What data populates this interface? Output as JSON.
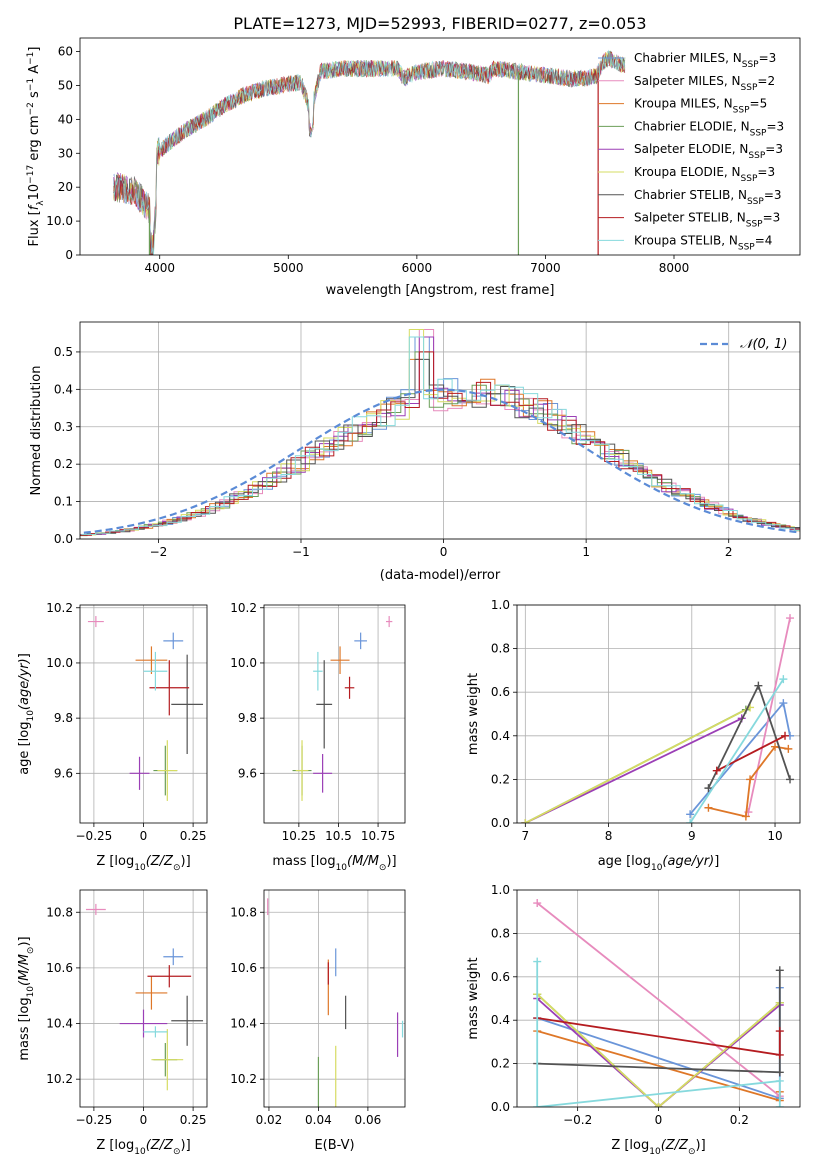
{
  "title": "PLATE=1273, MJD=52993, FIBERID=0277, z=0.053",
  "colors": [
    "#6a95d9",
    "#e78bbd",
    "#de7728",
    "#6b9e58",
    "#9b3fb6",
    "#d6dc63",
    "#535353",
    "#b51c20",
    "#86d9dd"
  ],
  "legend": [
    {
      "label": "Chabrier MILES, N",
      "sub": "SSP",
      "suffix": "=3"
    },
    {
      "label": "Salpeter MILES, N",
      "sub": "SSP",
      "suffix": "=2"
    },
    {
      "label": "Kroupa MILES, N",
      "sub": "SSP",
      "suffix": "=5"
    },
    {
      "label": "Chabrier ELODIE, N",
      "sub": "SSP",
      "suffix": "=3"
    },
    {
      "label": "Salpeter ELODIE, N",
      "sub": "SSP",
      "suffix": "=3"
    },
    {
      "label": "Kroupa ELODIE, N",
      "sub": "SSP",
      "suffix": "=3"
    },
    {
      "label": "Chabrier STELIB, N",
      "sub": "SSP",
      "suffix": "=3"
    },
    {
      "label": "Salpeter STELIB, N",
      "sub": "SSP",
      "suffix": "=3"
    },
    {
      "label": "Kroupa STELIB, N",
      "sub": "SSP",
      "suffix": "=4"
    }
  ],
  "chart_data": [
    {
      "type": "line",
      "xlabel": "wavelength [Angstrom, rest frame]",
      "ylabel": "Flux [f_λ 10^-17 erg cm^-2 s^-1 A^-1]",
      "xlim": [
        3380,
        8980
      ],
      "ylim": [
        0,
        64
      ],
      "xticks": [
        4000,
        5000,
        6000,
        7000,
        8000
      ],
      "yticks": [
        0,
        10,
        20,
        30,
        40,
        50,
        60
      ],
      "grid": false,
      "legend": "top-right",
      "x": [
        3650,
        3800,
        3950,
        3980,
        4100,
        4250,
        4350,
        4500,
        4650,
        4800,
        4950,
        5100,
        5175,
        5250,
        5400,
        5550,
        5700,
        5850,
        5900,
        6000,
        6200,
        6400,
        6560,
        6600,
        6800,
        7000,
        7200,
        7300,
        7400,
        7450,
        7500,
        7600
      ],
      "y": [
        20,
        19,
        12,
        30,
        34,
        38,
        40,
        44,
        47,
        49,
        50,
        51,
        42,
        54,
        55,
        55,
        55,
        55,
        52,
        54,
        55,
        54,
        53,
        55,
        54,
        53,
        52,
        52,
        53,
        57,
        58,
        56
      ],
      "spikes": [
        {
          "x": 3920,
          "y": 0,
          "series": 3
        },
        {
          "x": 6790,
          "y": 0,
          "series": 3
        },
        {
          "x": 7410,
          "y": 0,
          "series": 7
        }
      ]
    },
    {
      "type": "bar",
      "xlabel": "(data-model)/error",
      "ylabel": "Normed distribution",
      "xlim": [
        -2.55,
        2.5
      ],
      "ylim": [
        0,
        0.58
      ],
      "xticks": [
        -2,
        -1,
        0,
        1,
        2
      ],
      "yticks": [
        0,
        0.1,
        0.2,
        0.3,
        0.4,
        0.5
      ],
      "grid": true,
      "legend": "top-right",
      "series": [
        {
          "name": "𝒩(0, 1)",
          "mu": 0,
          "sigma": 1
        }
      ],
      "bin_width": 0.1,
      "spike": {
        "x": -0.15,
        "values": [
          0.54,
          0.56,
          0.48,
          0.5
        ]
      }
    },
    {
      "type": "scatter",
      "xlabel": "Z [log10(Z/Z⊙)]",
      "ylabel": "age [log10(age/yr)]",
      "xlim": [
        -0.32,
        0.32
      ],
      "ylim": [
        9.42,
        10.21
      ],
      "xticks": [
        -0.25,
        0,
        0.25
      ],
      "yticks": [
        9.6,
        9.8,
        10.0,
        10.2
      ],
      "points": [
        {
          "x": 0.15,
          "y": 10.08,
          "xe": 0.05,
          "ye": 0.03
        },
        {
          "x": -0.24,
          "y": 10.15,
          "xe": 0.04,
          "ye": 0.02
        },
        {
          "x": 0.04,
          "y": 10.01,
          "xe": 0.08,
          "ye": 0.05
        },
        {
          "x": 0.11,
          "y": 9.61,
          "xe": 0.06,
          "ye": 0.09
        },
        {
          "x": -0.02,
          "y": 9.6,
          "xe": 0.05,
          "ye": 0.06
        },
        {
          "x": 0.12,
          "y": 9.61,
          "xe": 0.05,
          "ye": 0.11
        },
        {
          "x": 0.22,
          "y": 9.85,
          "xe": 0.08,
          "ye": 0.18
        },
        {
          "x": 0.13,
          "y": 9.91,
          "xe": 0.1,
          "ye": 0.1
        },
        {
          "x": 0.06,
          "y": 9.97,
          "xe": 0.06,
          "ye": 0.07
        }
      ]
    },
    {
      "type": "scatter",
      "xlabel": "mass [log10(M/M⊙)]",
      "ylabel": "",
      "xlim": [
        10.03,
        10.92
      ],
      "ylim": [
        9.42,
        10.21
      ],
      "xticks": [
        10.25,
        10.5,
        10.75
      ],
      "yticks": [
        9.6,
        9.8,
        10.0,
        10.2
      ],
      "points": [
        {
          "x": 10.64,
          "y": 10.08,
          "xe": 0.04,
          "ye": 0.03
        },
        {
          "x": 10.82,
          "y": 10.15,
          "xe": 0.02,
          "ye": 0.02
        },
        {
          "x": 10.51,
          "y": 10.01,
          "xe": 0.06,
          "ye": 0.05
        },
        {
          "x": 10.27,
          "y": 9.61,
          "xe": 0.06,
          "ye": 0.09
        },
        {
          "x": 10.4,
          "y": 9.6,
          "xe": 0.06,
          "ye": 0.07
        },
        {
          "x": 10.27,
          "y": 9.61,
          "xe": 0.04,
          "ye": 0.11
        },
        {
          "x": 10.41,
          "y": 9.85,
          "xe": 0.05,
          "ye": 0.16
        },
        {
          "x": 10.57,
          "y": 9.91,
          "xe": 0.03,
          "ye": 0.04
        },
        {
          "x": 10.37,
          "y": 9.97,
          "xe": 0.03,
          "ye": 0.07
        }
      ]
    },
    {
      "type": "line",
      "xlabel": "age [log10(age/yr)]",
      "ylabel": "mass weight",
      "xlim": [
        6.9,
        10.3
      ],
      "ylim": [
        0,
        1
      ],
      "xticks": [
        7,
        8,
        9,
        10
      ],
      "yticks": [
        0,
        0.2,
        0.4,
        0.6,
        0.8,
        1.0
      ],
      "series": [
        {
          "x": [
            8.98,
            10.1,
            10.18
          ],
          "y": [
            0.04,
            0.55,
            0.4
          ]
        },
        {
          "x": [
            9.68,
            10.18
          ],
          "y": [
            0.05,
            0.94
          ]
        },
        {
          "x": [
            9.2,
            9.65,
            9.7,
            10.0,
            10.16
          ],
          "y": [
            0.07,
            0.03,
            0.2,
            0.35,
            0.34
          ]
        },
        {
          "x": [
            7.0,
            9.65
          ],
          "y": [
            0.0,
            0.52
          ]
        },
        {
          "x": [
            7.0,
            9.6
          ],
          "y": [
            0.0,
            0.48
          ]
        },
        {
          "x": [
            7.0,
            9.7
          ],
          "y": [
            0.0,
            0.53
          ]
        },
        {
          "x": [
            9.2,
            9.8,
            10.18
          ],
          "y": [
            0.16,
            0.63,
            0.2
          ]
        },
        {
          "x": [
            9.3,
            10.12
          ],
          "y": [
            0.24,
            0.4
          ]
        },
        {
          "x": [
            8.98,
            10.1
          ],
          "y": [
            0.0,
            0.66
          ]
        }
      ]
    },
    {
      "type": "scatter",
      "xlabel": "Z [log10(Z/Z⊙)]",
      "ylabel": "mass [log10(M/M⊙)]",
      "xlim": [
        -0.32,
        0.32
      ],
      "ylim": [
        10.1,
        10.88
      ],
      "xticks": [
        -0.25,
        0,
        0.25
      ],
      "yticks": [
        10.2,
        10.4,
        10.6,
        10.8
      ],
      "points": [
        {
          "x": 0.15,
          "y": 10.64,
          "xe": 0.05,
          "ye": 0.03
        },
        {
          "x": -0.24,
          "y": 10.81,
          "xe": 0.05,
          "ye": 0.02
        },
        {
          "x": 0.04,
          "y": 10.51,
          "xe": 0.08,
          "ye": 0.06
        },
        {
          "x": 0.11,
          "y": 10.27,
          "xe": 0.06,
          "ye": 0.06
        },
        {
          "x": 0.0,
          "y": 10.4,
          "xe": 0.12,
          "ye": 0.05
        },
        {
          "x": 0.12,
          "y": 10.27,
          "xe": 0.08,
          "ye": 0.11
        },
        {
          "x": 0.22,
          "y": 10.41,
          "xe": 0.08,
          "ye": 0.09
        },
        {
          "x": 0.13,
          "y": 10.57,
          "xe": 0.11,
          "ye": 0.04
        },
        {
          "x": 0.06,
          "y": 10.37,
          "xe": 0.06,
          "ye": 0.02
        }
      ]
    },
    {
      "type": "scatter",
      "xlabel": "E(B-V)",
      "ylabel": "",
      "xlim": [
        0.018,
        0.075
      ],
      "ylim": [
        10.1,
        10.88
      ],
      "xticks": [
        0.02,
        0.04,
        0.06
      ],
      "yticks": [
        10.2,
        10.4,
        10.6,
        10.8
      ],
      "points": [
        {
          "x": 0.047,
          "y": 10.62,
          "xe": 0,
          "ye": 0.05
        },
        {
          "x": 0.0195,
          "y": 10.82,
          "xe": 0,
          "ye": 0.03
        },
        {
          "x": 0.044,
          "y": 10.53,
          "xe": 0,
          "ye": 0.1
        },
        {
          "x": 0.04,
          "y": 10.18,
          "xe": 0,
          "ye": 0.1
        },
        {
          "x": 0.072,
          "y": 10.36,
          "xe": 0,
          "ye": 0.08
        },
        {
          "x": 0.047,
          "y": 10.2,
          "xe": 0,
          "ye": 0.12
        },
        {
          "x": 0.051,
          "y": 10.44,
          "xe": 0,
          "ye": 0.06
        },
        {
          "x": 0.044,
          "y": 10.58,
          "xe": 0,
          "ye": 0.04
        },
        {
          "x": 0.074,
          "y": 10.38,
          "xe": 0,
          "ye": 0.03
        }
      ]
    },
    {
      "type": "line",
      "xlabel": "Z [log10(Z/Z⊙)]",
      "ylabel": "mass weight",
      "xlim": [
        -0.35,
        0.35
      ],
      "ylim": [
        0,
        1
      ],
      "xticks": [
        -0.2,
        0,
        0.2
      ],
      "yticks": [
        0,
        0.2,
        0.4,
        0.6,
        0.8,
        1.0
      ],
      "series": [
        {
          "x": [
            -0.3,
            0.3,
            0.3
          ],
          "y": [
            0.41,
            0.04,
            0.55
          ]
        },
        {
          "x": [
            -0.3,
            0.3
          ],
          "y": [
            0.94,
            0.05
          ]
        },
        {
          "x": [
            -0.3,
            0.3,
            0.3
          ],
          "y": [
            0.35,
            0.03,
            0.07
          ]
        },
        {
          "x": [
            -0.3,
            0.0,
            0.3
          ],
          "y": [
            0.52,
            0.0,
            0.48
          ]
        },
        {
          "x": [
            -0.3,
            0.0,
            0.3
          ],
          "y": [
            0.5,
            0.0,
            0.47
          ]
        },
        {
          "x": [
            -0.3,
            0.0,
            0.3
          ],
          "y": [
            0.52,
            0.0,
            0.48
          ]
        },
        {
          "x": [
            -0.3,
            0.3,
            0.3
          ],
          "y": [
            0.2,
            0.16,
            0.63
          ]
        },
        {
          "x": [
            -0.3,
            0.3,
            0.3
          ],
          "y": [
            0.41,
            0.24,
            0.35
          ]
        },
        {
          "x": [
            -0.3,
            -0.3,
            0.3,
            0.3
          ],
          "y": [
            0.67,
            0.0,
            0.12,
            0.0
          ]
        }
      ]
    }
  ]
}
